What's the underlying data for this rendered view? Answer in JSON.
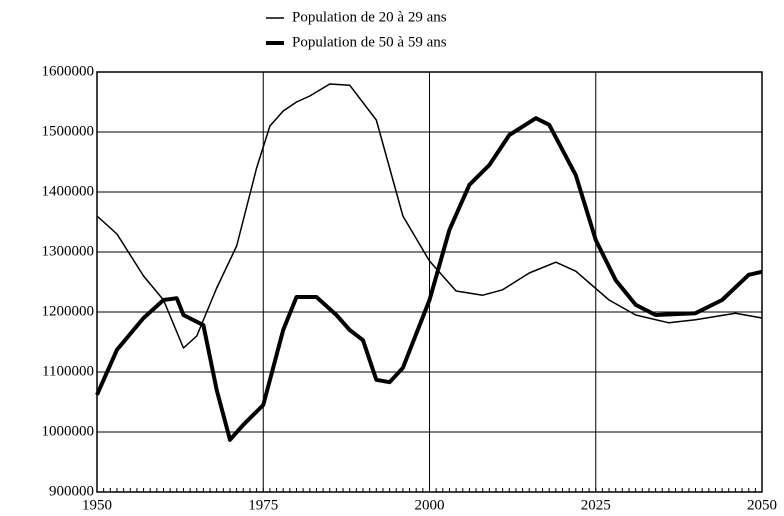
{
  "chart_data": {
    "type": "line",
    "series": [
      {
        "name": "Population de 20 à 29 ans",
        "color": "#000000",
        "line_width": 1.5,
        "x": [
          1950,
          1953,
          1957,
          1960,
          1963,
          1965,
          1968,
          1971,
          1974,
          1976,
          1978,
          1980,
          1982,
          1985,
          1988,
          1992,
          1994,
          1996,
          2000,
          2004,
          2008,
          2011,
          2015,
          2019,
          2022,
          2027,
          2031,
          2036,
          2040,
          2046,
          2050
        ],
        "values": [
          1360000,
          1330000,
          1260000,
          1220000,
          1140000,
          1160000,
          1240000,
          1310000,
          1440000,
          1510000,
          1535000,
          1550000,
          1560000,
          1580000,
          1578000,
          1520000,
          1440000,
          1360000,
          1285000,
          1235000,
          1228000,
          1237000,
          1265000,
          1283000,
          1268000,
          1220000,
          1195000,
          1182000,
          1187000,
          1198000,
          1190000
        ]
      },
      {
        "name": "Population de 50 à 59 ans",
        "color": "#000000",
        "line_width": 4,
        "x": [
          1950,
          1953,
          1957,
          1960,
          1962,
          1963,
          1966,
          1968,
          1970,
          1972,
          1975,
          1978,
          1980,
          1983,
          1986,
          1988,
          1990,
          1992,
          1994,
          1996,
          2000,
          2003,
          2006,
          2009,
          2012,
          2016,
          2018,
          2022,
          2025,
          2028,
          2031,
          2034,
          2040,
          2044,
          2048,
          2050
        ],
        "values": [
          1062000,
          1137000,
          1190000,
          1220000,
          1223000,
          1195000,
          1178000,
          1070000,
          987000,
          1012000,
          1045000,
          1170000,
          1225000,
          1225000,
          1195000,
          1170000,
          1153000,
          1087000,
          1083000,
          1107000,
          1220000,
          1337000,
          1412000,
          1445000,
          1495000,
          1523000,
          1512000,
          1428000,
          1320000,
          1253000,
          1212000,
          1195000,
          1198000,
          1220000,
          1262000,
          1267000
        ]
      }
    ],
    "xlim": [
      1950,
      2050
    ],
    "xticks": [
      1950,
      1975,
      2000,
      2025,
      2050
    ],
    "ylim": [
      900000,
      1600000
    ],
    "yticks": [
      900000,
      1000000,
      1100000,
      1200000,
      1300000,
      1400000,
      1500000,
      1600000
    ],
    "grid": true
  }
}
